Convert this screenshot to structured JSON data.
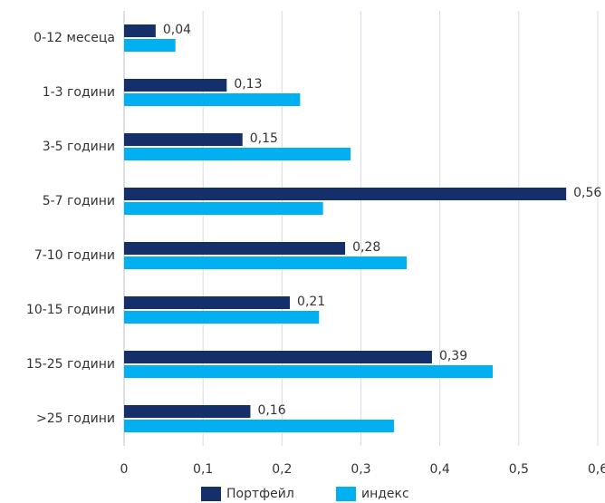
{
  "chart_data": {
    "type": "bar",
    "orientation": "horizontal",
    "categories": [
      "0-12 месеца",
      "1-3 години",
      "3-5 години",
      "5-7 години",
      "7-10 години",
      "10-15 години",
      "15-25 години",
      ">25 години"
    ],
    "series": [
      {
        "name": "Портфейл",
        "color": "#142f69",
        "values": [
          0.04,
          0.13,
          0.15,
          0.56,
          0.28,
          0.21,
          0.39,
          0.16
        ],
        "value_labels": [
          "0,04",
          "0,13",
          "0,15",
          "0,56",
          "0,28",
          "0,21",
          "0,39",
          "0,16"
        ]
      },
      {
        "name": "индекс",
        "color": "#00b0f0",
        "values": [
          0.065,
          0.223,
          0.287,
          0.252,
          0.358,
          0.247,
          0.467,
          0.342
        ]
      }
    ],
    "xlim": [
      0,
      0.6
    ],
    "xticks": [
      0,
      {
        "value": 0.1,
        "label": "0,1"
      },
      {
        "value": 0.2,
        "label": "0,2"
      },
      {
        "value": 0.3,
        "label": "0,3"
      },
      {
        "value": 0.4,
        "label": "0,4"
      },
      {
        "value": 0.5,
        "label": "0,5"
      },
      {
        "value": 0.6,
        "label": "0,6"
      }
    ],
    "grid": true,
    "legend": "bottom"
  }
}
